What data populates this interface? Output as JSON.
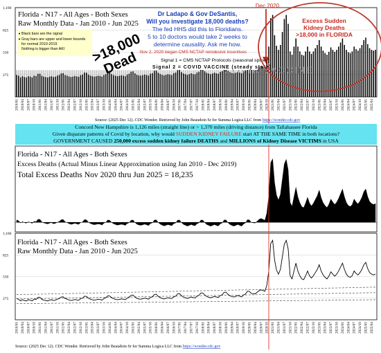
{
  "colors": {
    "bar": "#000000",
    "signal_line": "#e03325",
    "gray_bar": "#bdbdbd",
    "annotation_blue": "#1a3fb8",
    "annotation_red": "#c9281e",
    "circle_red": "#c0392b",
    "panel_bg": "#66e3f0",
    "link_blue": "#1a3fcc"
  },
  "panel1": {
    "title": "Florida - N17 - All Ages - Both Sexes",
    "subtitle": "Raw Monthly Data - Jan 2010 - Jun 2025",
    "legend_items": [
      "Black bars are the signal",
      "Gray bars are upper and lower bounds",
      "for normal 2010-2019",
      "Nothing is bigger than AKI"
    ],
    "big_label_1": ">18,000",
    "big_label_2": "Dead",
    "blue_lines": [
      "Dr Ladapo & Gov DeSantis,",
      "Will you investigate 18,000 deaths?",
      "The fed HHS did this to Floridians.",
      "5 to 10 doctors would take 2 weeks to",
      "determine causality. Ask me how."
    ],
    "red_note": "Nov 2, 2020 began CMS NCTAP remdesivir incentives",
    "dec_label": "Dec 2020",
    "excess_title": [
      "Excess Sudden",
      "Kidney Deaths",
      ">18,000 in FLORIDA"
    ],
    "signal1": "Signal 1 = CMS NCTAP Protocols (seasonal spikes)",
    "signal2": "Signal 2 = COVID VACCINE (steady state)",
    "watermark": "COVID VACCINE",
    "source_prefix": "Source: (2025 Dec 12). CDC Wonder. Retrieved by John Beaudoin Sr for Summa Logica LLC from ",
    "source_url": "https://wonder.cdc.gov"
  },
  "middle": {
    "line1": "Concord New Hampshire is 1,126 miles (straight line) or > 1,370 miles (driving distance) from Tallahassee Florida",
    "line2_a": "Given disparate patterns of Covid by location, why would ",
    "line2_b": "SUDDEN KIDNEY FAILURE",
    "line2_c": " start AT THE SAME TIME in both locations?",
    "line3_a": "GOVERNMENT CAUSED ",
    "line3_b": "250,000 excess sudden kidney failure DEATHS",
    "line3_c": " and ",
    "line3_d": "MILLIONS of Kidney Disease VICTIMS",
    "line3_e": " in USA"
  },
  "panel2": {
    "title": "Florida - N17 - All Ages - Both Sexes",
    "subtitle": "Excess Deaths (Actual Minus Linear Approximation using Jan 2010 - Dec 2019)",
    "total": "Total Excess Deaths Nov 2020 thru Jun 2025 = 18,235"
  },
  "panel3": {
    "title": "Florida - N17 - All Ages - Both Sexes",
    "subtitle": "Raw Monthly Data - Jan 2010 - Jun 2025",
    "source_prefix": "Source: (2025 Dec 12). CDC Wonder. Retrieved by John Beaudoin Sr for Summa Logica LLC from ",
    "source_url": "https://wonder.cdc.gov"
  },
  "chart_data": [
    {
      "type": "bar",
      "title": "Florida - N17 - All Ages - Both Sexes",
      "subtitle": "Raw Monthly Data - Jan 2010 - Jun 2025",
      "x_start": "2010-01",
      "x_end": "2025-06",
      "x_tick_step_months": 3,
      "yticks": [
        275,
        550,
        825,
        1100
      ],
      "ylim": [
        0,
        1100
      ],
      "grid": true,
      "series": [
        {
          "values": "monthly_values"
        }
      ],
      "bounds": {
        "lower": 245,
        "upper": 330
      },
      "vline": "2020-11"
    },
    {
      "type": "area",
      "title": "Florida - N17 - All Ages - Both Sexes",
      "subtitle": "Excess Deaths (Actual Minus Linear Approximation using Jan 2010 - Dec 2019)",
      "x_start": "2010-01",
      "x_end": "2025-06",
      "ylim": [
        -100,
        800
      ],
      "total_excess_nov2020_jun2025": 18235
    },
    {
      "type": "line",
      "title": "Florida - N17 - All Ages - Both Sexes",
      "subtitle": "Raw Monthly Data - Jan 2010 - Jun 2025",
      "x_start": "2010-01",
      "x_end": "2025-06",
      "x_tick_step_months": 3,
      "yticks": [
        275,
        550,
        825,
        1100
      ],
      "ylim": [
        0,
        1100
      ],
      "grid": true,
      "trend_lines": [
        {
          "start": 265,
          "end": 345
        },
        {
          "start": 205,
          "end": 255
        },
        {
          "start": 320,
          "end": 415
        }
      ],
      "vline": "2020-11"
    }
  ],
  "monthly_values": [
    270,
    262,
    240,
    255,
    245,
    240,
    255,
    250,
    240,
    262,
    258,
    285,
    285,
    260,
    250,
    245,
    240,
    250,
    255,
    245,
    250,
    262,
    270,
    290,
    292,
    270,
    262,
    252,
    245,
    250,
    258,
    252,
    248,
    268,
    275,
    300,
    298,
    275,
    262,
    255,
    250,
    255,
    260,
    258,
    250,
    270,
    280,
    305,
    302,
    280,
    268,
    260,
    255,
    260,
    265,
    262,
    255,
    275,
    285,
    310,
    315,
    290,
    272,
    265,
    262,
    268,
    275,
    270,
    262,
    285,
    292,
    322,
    325,
    298,
    282,
    272,
    265,
    272,
    280,
    275,
    270,
    292,
    300,
    330,
    332,
    305,
    288,
    280,
    272,
    280,
    290,
    282,
    278,
    300,
    310,
    340,
    340,
    315,
    296,
    288,
    280,
    288,
    298,
    290,
    285,
    308,
    318,
    350,
    350,
    322,
    305,
    295,
    290,
    298,
    308,
    300,
    292,
    315,
    328,
    362,
    360,
    335,
    332,
    330,
    350,
    370,
    380,
    372,
    362,
    440,
    620,
    970,
    1010,
    760,
    630,
    580,
    640,
    800,
    960,
    1010,
    900,
    560,
    520,
    620,
    720,
    620,
    560,
    520,
    510,
    560,
    620,
    560,
    530,
    560,
    600,
    640,
    700,
    620,
    570,
    540,
    520,
    555,
    610,
    580,
    555,
    580,
    620,
    670,
    720,
    640,
    580,
    550,
    540,
    560,
    620,
    590,
    570,
    600,
    640,
    700,
    730,
    650,
    600,
    580,
    570,
    580
  ]
}
